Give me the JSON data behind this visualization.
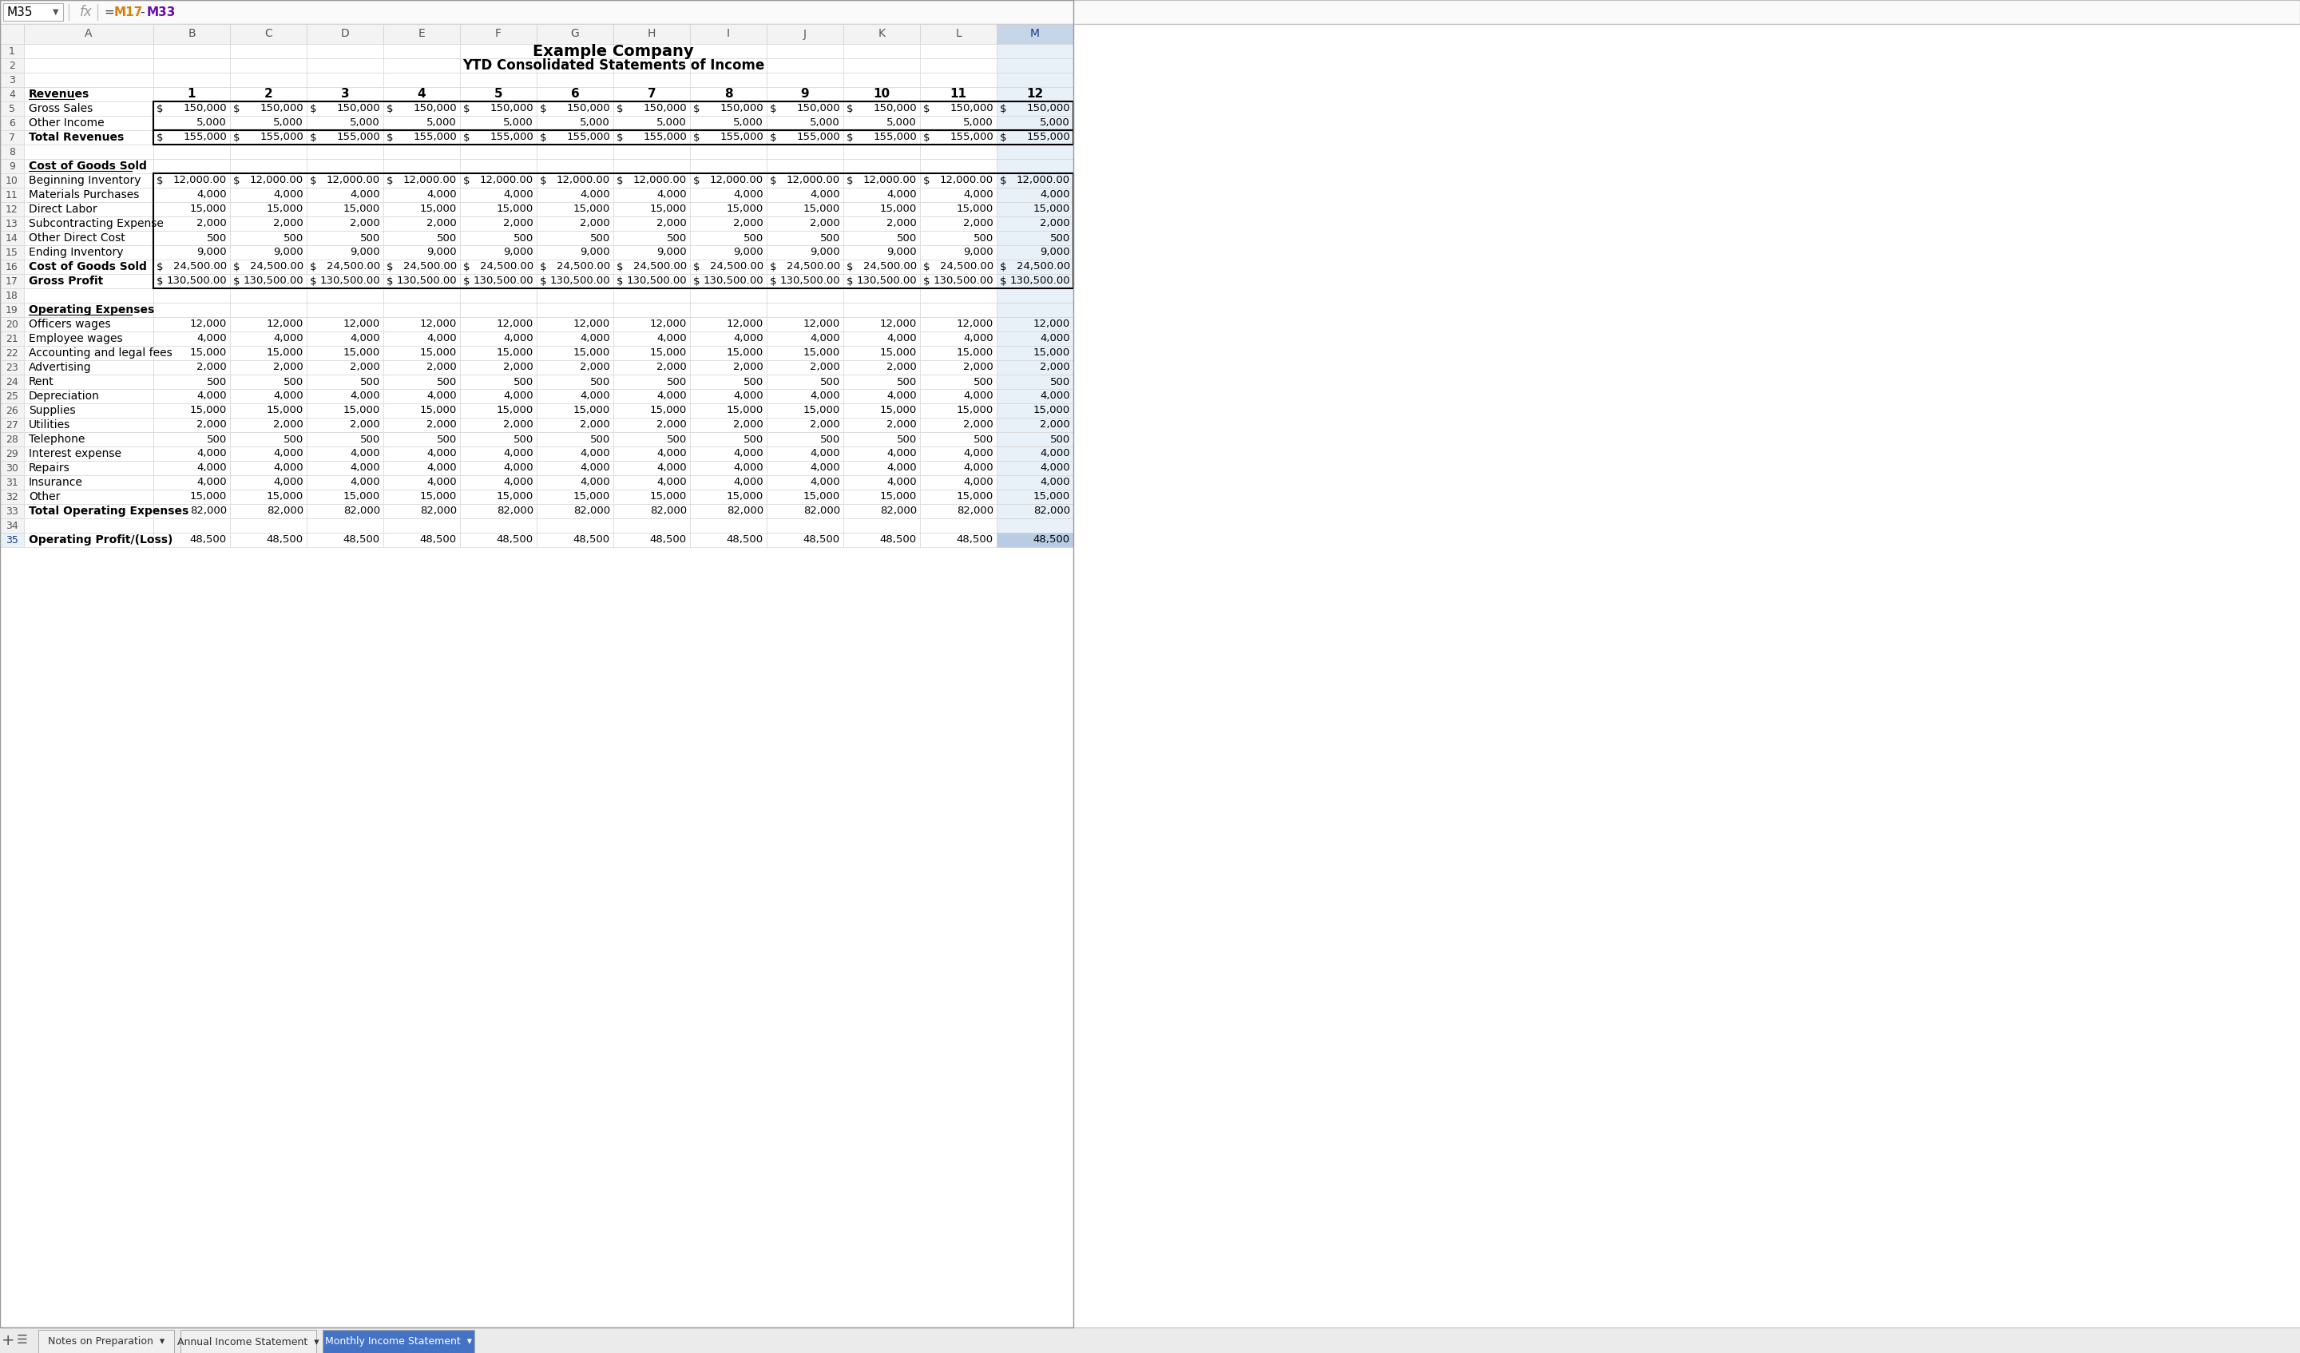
{
  "title1": "Example Company",
  "title2": "YTD Consolidated Statements of Income",
  "formula_cell": "M35",
  "formula_m17_color": "#d4820a",
  "formula_m33_color": "#6a0dad",
  "col_letters": [
    "A",
    "B",
    "C",
    "D",
    "E",
    "F",
    "G",
    "H",
    "I",
    "J",
    "K",
    "L",
    "M"
  ],
  "month_headers": [
    "1",
    "2",
    "3",
    "4",
    "5",
    "6",
    "7",
    "8",
    "9",
    "10",
    "11",
    "12"
  ],
  "row_labels": {
    "4": {
      "text": "Revenues",
      "style": "bold_underline"
    },
    "5": {
      "text": "Gross Sales",
      "style": "normal"
    },
    "6": {
      "text": "Other Income",
      "style": "normal"
    },
    "7": {
      "text": "Total Revenues",
      "style": "bold"
    },
    "8": {
      "text": "",
      "style": "normal"
    },
    "9": {
      "text": "Cost of Goods Sold",
      "style": "bold_underline"
    },
    "10": {
      "text": "Beginning Inventory",
      "style": "normal"
    },
    "11": {
      "text": "Materials Purchases",
      "style": "normal"
    },
    "12": {
      "text": "Direct Labor",
      "style": "normal"
    },
    "13": {
      "text": "Subcontracting Expense",
      "style": "normal"
    },
    "14": {
      "text": "Other Direct Cost",
      "style": "normal"
    },
    "15": {
      "text": "Ending Inventory",
      "style": "normal"
    },
    "16": {
      "text": "Cost of Goods Sold",
      "style": "bold"
    },
    "17": {
      "text": "Gross Profit",
      "style": "bold"
    },
    "18": {
      "text": "",
      "style": "normal"
    },
    "19": {
      "text": "Operating Expenses",
      "style": "bold_underline"
    },
    "20": {
      "text": "Officers wages",
      "style": "normal"
    },
    "21": {
      "text": "Employee wages",
      "style": "normal"
    },
    "22": {
      "text": "Accounting and legal fees",
      "style": "normal"
    },
    "23": {
      "text": "Advertising",
      "style": "normal"
    },
    "24": {
      "text": "Rent",
      "style": "normal"
    },
    "25": {
      "text": "Depreciation",
      "style": "normal"
    },
    "26": {
      "text": "Supplies",
      "style": "normal"
    },
    "27": {
      "text": "Utilities",
      "style": "normal"
    },
    "28": {
      "text": "Telephone",
      "style": "normal"
    },
    "29": {
      "text": "Interest expense",
      "style": "normal"
    },
    "30": {
      "text": "Repairs",
      "style": "normal"
    },
    "31": {
      "text": "Insurance",
      "style": "normal"
    },
    "32": {
      "text": "Other",
      "style": "normal"
    },
    "33": {
      "text": "Total Operating Expenses",
      "style": "bold"
    },
    "34": {
      "text": "",
      "style": "normal"
    },
    "35": {
      "text": "Operating Profit/(Loss)",
      "style": "bold"
    }
  },
  "dollar_sign_rows": [
    "5",
    "7",
    "10",
    "16",
    "17"
  ],
  "decimal_rows": [
    "10",
    "16",
    "17"
  ],
  "data": {
    "5": [
      150000,
      150000,
      150000,
      150000,
      150000,
      150000,
      150000,
      150000,
      150000,
      150000,
      150000,
      150000
    ],
    "6": [
      5000,
      5000,
      5000,
      5000,
      5000,
      5000,
      5000,
      5000,
      5000,
      5000,
      5000,
      5000
    ],
    "7": [
      155000,
      155000,
      155000,
      155000,
      155000,
      155000,
      155000,
      155000,
      155000,
      155000,
      155000,
      155000
    ],
    "10": [
      12000,
      12000,
      12000,
      12000,
      12000,
      12000,
      12000,
      12000,
      12000,
      12000,
      12000,
      12000
    ],
    "11": [
      4000,
      4000,
      4000,
      4000,
      4000,
      4000,
      4000,
      4000,
      4000,
      4000,
      4000,
      4000
    ],
    "12": [
      15000,
      15000,
      15000,
      15000,
      15000,
      15000,
      15000,
      15000,
      15000,
      15000,
      15000,
      15000
    ],
    "13": [
      2000,
      2000,
      2000,
      2000,
      2000,
      2000,
      2000,
      2000,
      2000,
      2000,
      2000,
      2000
    ],
    "14": [
      500,
      500,
      500,
      500,
      500,
      500,
      500,
      500,
      500,
      500,
      500,
      500
    ],
    "15": [
      9000,
      9000,
      9000,
      9000,
      9000,
      9000,
      9000,
      9000,
      9000,
      9000,
      9000,
      9000
    ],
    "16": [
      24500,
      24500,
      24500,
      24500,
      24500,
      24500,
      24500,
      24500,
      24500,
      24500,
      24500,
      24500
    ],
    "17": [
      130500,
      130500,
      130500,
      130500,
      130500,
      130500,
      130500,
      130500,
      130500,
      130500,
      130500,
      130500
    ],
    "20": [
      12000,
      12000,
      12000,
      12000,
      12000,
      12000,
      12000,
      12000,
      12000,
      12000,
      12000,
      12000
    ],
    "21": [
      4000,
      4000,
      4000,
      4000,
      4000,
      4000,
      4000,
      4000,
      4000,
      4000,
      4000,
      4000
    ],
    "22": [
      15000,
      15000,
      15000,
      15000,
      15000,
      15000,
      15000,
      15000,
      15000,
      15000,
      15000,
      15000
    ],
    "23": [
      2000,
      2000,
      2000,
      2000,
      2000,
      2000,
      2000,
      2000,
      2000,
      2000,
      2000,
      2000
    ],
    "24": [
      500,
      500,
      500,
      500,
      500,
      500,
      500,
      500,
      500,
      500,
      500,
      500
    ],
    "25": [
      4000,
      4000,
      4000,
      4000,
      4000,
      4000,
      4000,
      4000,
      4000,
      4000,
      4000,
      4000
    ],
    "26": [
      15000,
      15000,
      15000,
      15000,
      15000,
      15000,
      15000,
      15000,
      15000,
      15000,
      15000,
      15000
    ],
    "27": [
      2000,
      2000,
      2000,
      2000,
      2000,
      2000,
      2000,
      2000,
      2000,
      2000,
      2000,
      2000
    ],
    "28": [
      500,
      500,
      500,
      500,
      500,
      500,
      500,
      500,
      500,
      500,
      500,
      500
    ],
    "29": [
      4000,
      4000,
      4000,
      4000,
      4000,
      4000,
      4000,
      4000,
      4000,
      4000,
      4000,
      4000
    ],
    "30": [
      4000,
      4000,
      4000,
      4000,
      4000,
      4000,
      4000,
      4000,
      4000,
      4000,
      4000,
      4000
    ],
    "31": [
      4000,
      4000,
      4000,
      4000,
      4000,
      4000,
      4000,
      4000,
      4000,
      4000,
      4000,
      4000
    ],
    "32": [
      15000,
      15000,
      15000,
      15000,
      15000,
      15000,
      15000,
      15000,
      15000,
      15000,
      15000,
      15000
    ],
    "33": [
      82000,
      82000,
      82000,
      82000,
      82000,
      82000,
      82000,
      82000,
      82000,
      82000,
      82000,
      82000
    ],
    "35": [
      48500,
      48500,
      48500,
      48500,
      48500,
      48500,
      48500,
      48500,
      48500,
      48500,
      48500,
      48500
    ]
  },
  "tabs": [
    {
      "label": "Notes on Preparation",
      "active": false
    },
    {
      "label": "Annual Income Statement",
      "active": false
    },
    {
      "label": "Monthly Income Statement",
      "active": true
    }
  ],
  "colors": {
    "bg": "#ffffff",
    "header_bg": "#f3f3f3",
    "grid": "#d0d0d0",
    "row_num_bg": "#f3f3f3",
    "selected_col_header": "#c6d5e8",
    "selected_col_cell": "#e8f0f8",
    "selected_active_cell": "#b8cce4",
    "tab_active_bg": "#4472c4",
    "tab_active_fg": "#ffffff",
    "tab_inactive_bg": "#f0f0f0",
    "tab_inactive_fg": "#333333",
    "formula_bar_bg": "#ffffff",
    "border_dark": "#000000",
    "text_main": "#000000",
    "text_dim": "#666666",
    "row_num_selected": "#e8f0f8"
  }
}
